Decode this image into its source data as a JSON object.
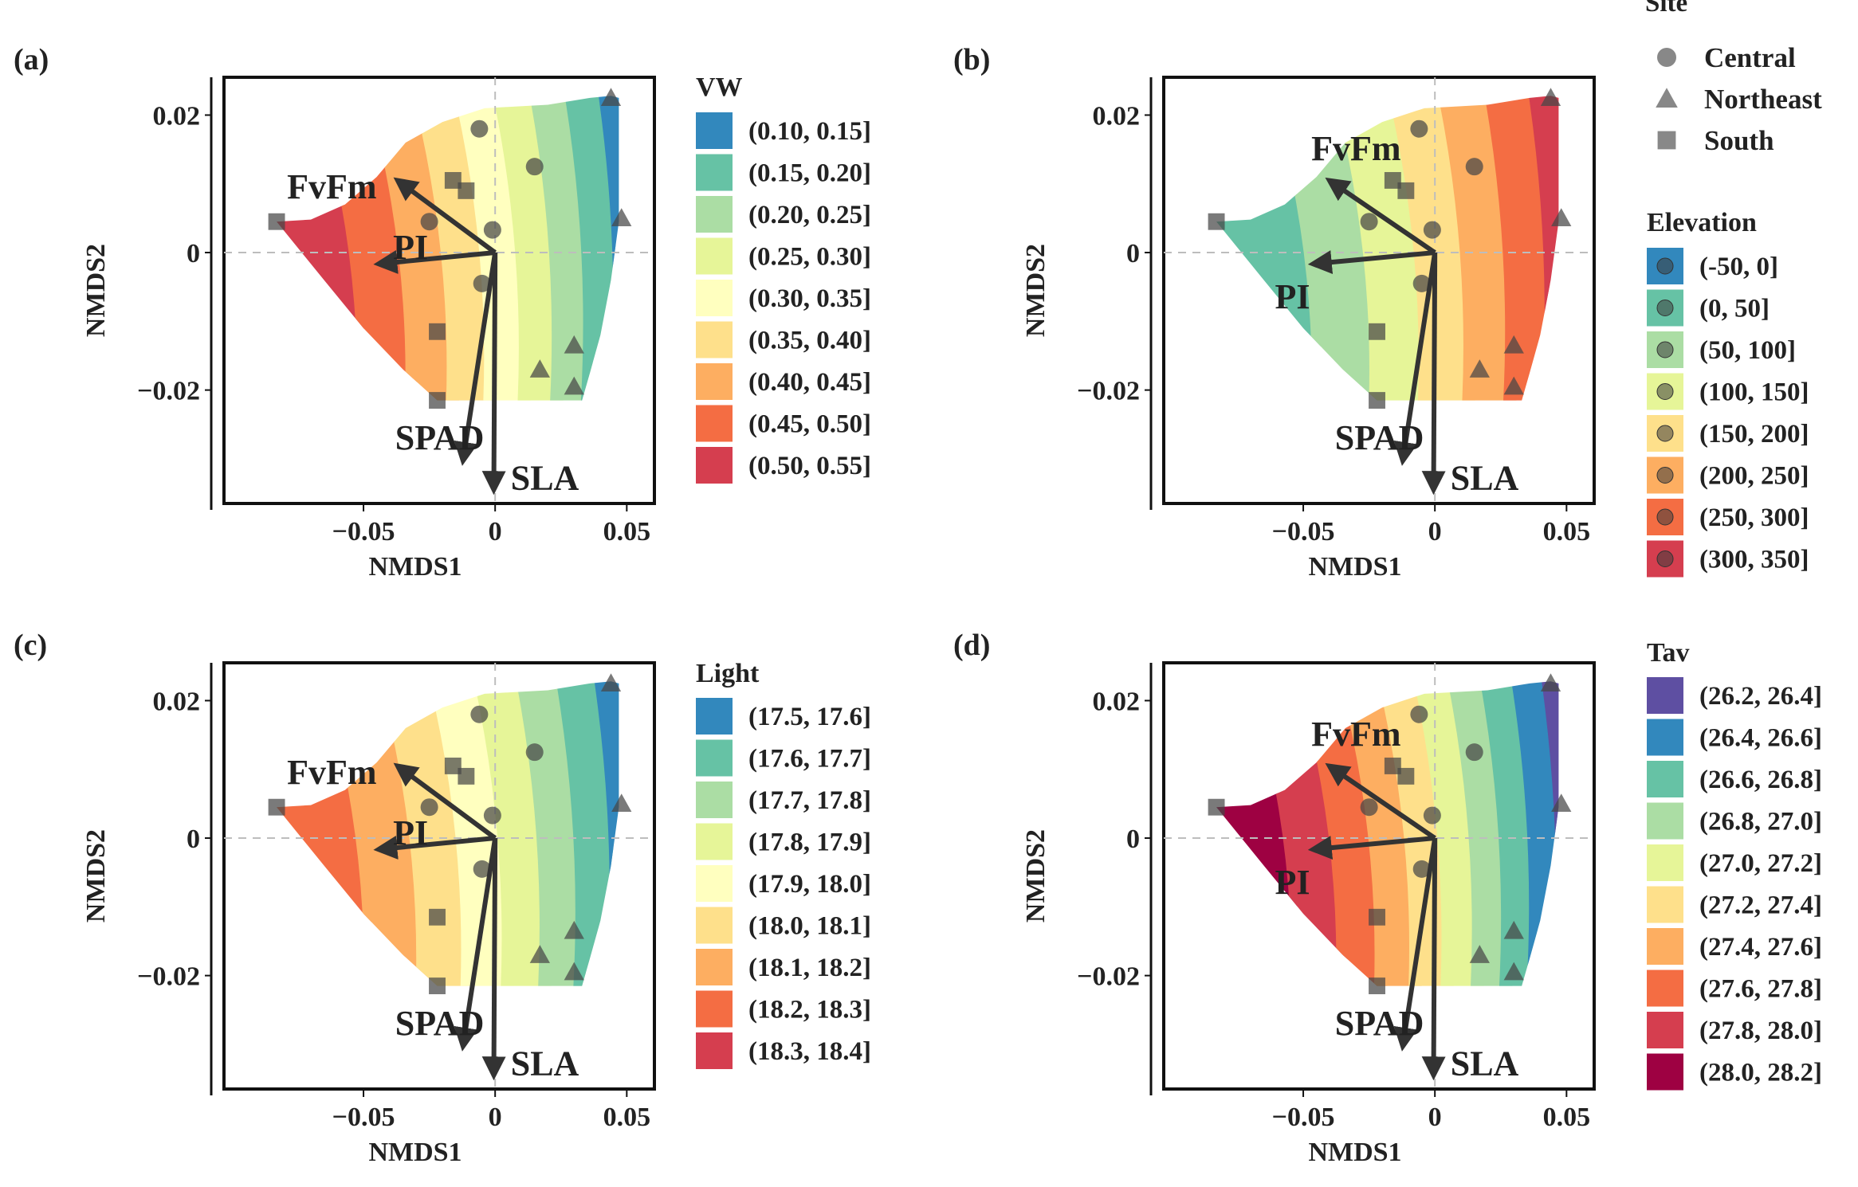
{
  "figure": {
    "site_legend": {
      "title": "Site",
      "entries": [
        {
          "label": "Central",
          "shape": "circle-icon"
        },
        {
          "label": "Northeast",
          "shape": "triangle-icon"
        },
        {
          "label": "South",
          "shape": "square-icon"
        }
      ]
    },
    "colors": {
      "frame": "#111111",
      "arrow": "#333333",
      "dashed": "#bdbdbd",
      "marker": "#555555"
    }
  },
  "chart_data": [
    {
      "type": "contour",
      "panel_label": "(a)",
      "xlabel": "NMDS1",
      "ylabel": "NMDS2",
      "xlim": [
        -0.103,
        0.0605
      ],
      "ylim": [
        -0.0365,
        0.0255
      ],
      "xticks": [
        -0.05,
        0,
        0.05
      ],
      "xtick_labels": [
        "−0.05",
        "0",
        "0.05"
      ],
      "yticks": [
        0.02,
        0,
        -0.02
      ],
      "ytick_labels": [
        "0.02",
        "0",
        "−0.02"
      ],
      "vectors": [
        {
          "label": "FvFm",
          "x": -0.036,
          "y": 0.0102
        },
        {
          "label": "PI",
          "x": -0.043,
          "y": -0.0016
        },
        {
          "label": "SPAD",
          "x": -0.012,
          "y": -0.0298
        },
        {
          "label": "SLA",
          "x": -0.0005,
          "y": -0.034
        }
      ],
      "surface": {
        "variable": "VW",
        "legend_title": "VW",
        "bins": [
          "(0.10, 0.15]",
          "(0.15, 0.20]",
          "(0.20, 0.25]",
          "(0.25, 0.30]",
          "(0.30, 0.35]",
          "(0.35, 0.40]",
          "(0.40, 0.45]",
          "(0.45, 0.50]",
          "(0.50, 0.55]"
        ],
        "colors": [
          "#3288bd",
          "#66c2a5",
          "#abdda4",
          "#e6f598",
          "#ffffbf",
          "#fee08b",
          "#fdae61",
          "#f46d43",
          "#d53e4f"
        ],
        "bands_left_to_right": [
          8,
          7,
          6,
          5,
          4,
          3,
          2,
          1,
          0
        ]
      },
      "sites": [
        {
          "site": "Central",
          "x": -0.006,
          "y": 0.018
        },
        {
          "site": "Central",
          "x": 0.015,
          "y": 0.0125
        },
        {
          "site": "Central",
          "x": -0.025,
          "y": 0.0045
        },
        {
          "site": "Central",
          "x": -0.001,
          "y": 0.0033
        },
        {
          "site": "Central",
          "x": -0.005,
          "y": -0.0045
        },
        {
          "site": "Northeast",
          "x": 0.044,
          "y": 0.0225
        },
        {
          "site": "Northeast",
          "x": 0.048,
          "y": 0.005
        },
        {
          "site": "Northeast",
          "x": 0.017,
          "y": -0.017
        },
        {
          "site": "Northeast",
          "x": 0.03,
          "y": -0.0135
        },
        {
          "site": "Northeast",
          "x": 0.03,
          "y": -0.0195
        },
        {
          "site": "South",
          "x": -0.083,
          "y": 0.0045
        },
        {
          "site": "South",
          "x": -0.016,
          "y": 0.0105
        },
        {
          "site": "South",
          "x": -0.011,
          "y": 0.009
        },
        {
          "site": "South",
          "x": -0.022,
          "y": -0.0115
        },
        {
          "site": "South",
          "x": -0.022,
          "y": -0.0215
        }
      ]
    },
    {
      "type": "contour",
      "panel_label": "(b)",
      "xlabel": "NMDS1",
      "ylabel": "NMDS2",
      "xlim": [
        -0.103,
        0.0605
      ],
      "ylim": [
        -0.0365,
        0.0255
      ],
      "xticks": [
        -0.05,
        0,
        0.05
      ],
      "xtick_labels": [
        "−0.05",
        "0",
        "0.05"
      ],
      "yticks": [
        0.02,
        0,
        -0.02
      ],
      "ytick_labels": [
        "0.02",
        "0",
        "−0.02"
      ],
      "vectors": [
        {
          "label": "FvFm",
          "x": -0.039,
          "y": 0.0102
        },
        {
          "label": "PI",
          "x": -0.045,
          "y": -0.0016
        },
        {
          "label": "SPAD",
          "x": -0.012,
          "y": -0.0298
        },
        {
          "label": "SLA",
          "x": -0.0005,
          "y": -0.034
        }
      ],
      "surface": {
        "variable": "Elevation",
        "legend_title": "Elevation",
        "bins": [
          "(-50, 0]",
          "(0, 50]",
          "(50, 100]",
          "(100, 150]",
          "(150, 200]",
          "(200, 250]",
          "(250, 300]",
          "(300, 350]"
        ],
        "colors": [
          "#3288bd",
          "#66c2a5",
          "#abdda4",
          "#e6f598",
          "#fee08b",
          "#fdae61",
          "#f46d43",
          "#d53e4f"
        ],
        "bands_left_to_right": [
          1,
          2,
          3,
          4,
          5,
          6,
          7
        ]
      },
      "sites": [
        {
          "site": "Central",
          "x": -0.006,
          "y": 0.018
        },
        {
          "site": "Central",
          "x": 0.015,
          "y": 0.0125
        },
        {
          "site": "Central",
          "x": -0.025,
          "y": 0.0045
        },
        {
          "site": "Central",
          "x": -0.001,
          "y": 0.0033
        },
        {
          "site": "Central",
          "x": -0.005,
          "y": -0.0045
        },
        {
          "site": "Northeast",
          "x": 0.044,
          "y": 0.0225
        },
        {
          "site": "Northeast",
          "x": 0.048,
          "y": 0.005
        },
        {
          "site": "Northeast",
          "x": 0.017,
          "y": -0.017
        },
        {
          "site": "Northeast",
          "x": 0.03,
          "y": -0.0135
        },
        {
          "site": "Northeast",
          "x": 0.03,
          "y": -0.0195
        },
        {
          "site": "South",
          "x": -0.083,
          "y": 0.0045
        },
        {
          "site": "South",
          "x": -0.016,
          "y": 0.0105
        },
        {
          "site": "South",
          "x": -0.011,
          "y": 0.009
        },
        {
          "site": "South",
          "x": -0.022,
          "y": -0.0115
        },
        {
          "site": "South",
          "x": -0.022,
          "y": -0.0215
        }
      ]
    },
    {
      "type": "contour",
      "panel_label": "(c)",
      "xlabel": "NMDS1",
      "ylabel": "NMDS2",
      "xlim": [
        -0.103,
        0.0605
      ],
      "ylim": [
        -0.0365,
        0.0255
      ],
      "xticks": [
        -0.05,
        0,
        0.05
      ],
      "xtick_labels": [
        "−0.05",
        "0",
        "0.05"
      ],
      "yticks": [
        0.02,
        0,
        -0.02
      ],
      "ytick_labels": [
        "0.02",
        "0",
        "−0.02"
      ],
      "vectors": [
        {
          "label": "FvFm",
          "x": -0.036,
          "y": 0.0102
        },
        {
          "label": "PI",
          "x": -0.043,
          "y": -0.0016
        },
        {
          "label": "SPAD",
          "x": -0.012,
          "y": -0.0298
        },
        {
          "label": "SLA",
          "x": -0.0005,
          "y": -0.034
        }
      ],
      "surface": {
        "variable": "Light",
        "legend_title": "Light",
        "bins": [
          "(17.5, 17.6]",
          "(17.6, 17.7]",
          "(17.7, 17.8]",
          "(17.8, 17.9]",
          "(17.9, 18.0]",
          "(18.0, 18.1]",
          "(18.1, 18.2]",
          "(18.2, 18.3]",
          "(18.3, 18.4]"
        ],
        "colors": [
          "#3288bd",
          "#66c2a5",
          "#abdda4",
          "#e6f598",
          "#ffffbf",
          "#fee08b",
          "#fdae61",
          "#f46d43",
          "#d53e4f"
        ],
        "bands_left_to_right": [
          7,
          6,
          5,
          4,
          3,
          2,
          1,
          0
        ]
      },
      "sites": [
        {
          "site": "Central",
          "x": -0.006,
          "y": 0.018
        },
        {
          "site": "Central",
          "x": 0.015,
          "y": 0.0125
        },
        {
          "site": "Central",
          "x": -0.025,
          "y": 0.0045
        },
        {
          "site": "Central",
          "x": -0.001,
          "y": 0.0033
        },
        {
          "site": "Central",
          "x": -0.005,
          "y": -0.0045
        },
        {
          "site": "Northeast",
          "x": 0.044,
          "y": 0.0225
        },
        {
          "site": "Northeast",
          "x": 0.048,
          "y": 0.005
        },
        {
          "site": "Northeast",
          "x": 0.017,
          "y": -0.017
        },
        {
          "site": "Northeast",
          "x": 0.03,
          "y": -0.0135
        },
        {
          "site": "Northeast",
          "x": 0.03,
          "y": -0.0195
        },
        {
          "site": "South",
          "x": -0.083,
          "y": 0.0045
        },
        {
          "site": "South",
          "x": -0.016,
          "y": 0.0105
        },
        {
          "site": "South",
          "x": -0.011,
          "y": 0.009
        },
        {
          "site": "South",
          "x": -0.022,
          "y": -0.0115
        },
        {
          "site": "South",
          "x": -0.022,
          "y": -0.0215
        }
      ]
    },
    {
      "type": "contour",
      "panel_label": "(d)",
      "xlabel": "NMDS1",
      "ylabel": "NMDS2",
      "xlim": [
        -0.103,
        0.0605
      ],
      "ylim": [
        -0.0365,
        0.0255
      ],
      "xticks": [
        -0.05,
        0,
        0.05
      ],
      "xtick_labels": [
        "−0.05",
        "0",
        "0.05"
      ],
      "yticks": [
        0.02,
        0,
        -0.02
      ],
      "ytick_labels": [
        "0.02",
        "0",
        "−0.02"
      ],
      "vectors": [
        {
          "label": "FvFm",
          "x": -0.039,
          "y": 0.0102
        },
        {
          "label": "PI",
          "x": -0.045,
          "y": -0.0016
        },
        {
          "label": "SPAD",
          "x": -0.012,
          "y": -0.0298
        },
        {
          "label": "SLA",
          "x": -0.0005,
          "y": -0.034
        }
      ],
      "surface": {
        "variable": "Tav",
        "legend_title": "Tav",
        "bins": [
          "(26.2, 26.4]",
          "(26.4, 26.6]",
          "(26.6, 26.8]",
          "(26.8, 27.0]",
          "(27.0, 27.2]",
          "(27.2, 27.4]",
          "(27.4, 27.6]",
          "(27.6, 27.8]",
          "(27.8, 28.0]",
          "(28.0, 28.2]"
        ],
        "colors": [
          "#5e4fa2",
          "#3288bd",
          "#66c2a5",
          "#abdda4",
          "#e6f598",
          "#fee08b",
          "#fdae61",
          "#f46d43",
          "#d53e4f",
          "#9e0142"
        ],
        "bands_left_to_right": [
          9,
          8,
          7,
          6,
          5,
          4,
          3,
          2,
          1,
          0
        ]
      },
      "sites": [
        {
          "site": "Central",
          "x": -0.006,
          "y": 0.018
        },
        {
          "site": "Central",
          "x": 0.015,
          "y": 0.0125
        },
        {
          "site": "Central",
          "x": -0.025,
          "y": 0.0045
        },
        {
          "site": "Central",
          "x": -0.001,
          "y": 0.0033
        },
        {
          "site": "Central",
          "x": -0.005,
          "y": -0.0045
        },
        {
          "site": "Northeast",
          "x": 0.044,
          "y": 0.0225
        },
        {
          "site": "Northeast",
          "x": 0.048,
          "y": 0.005
        },
        {
          "site": "Northeast",
          "x": 0.017,
          "y": -0.017
        },
        {
          "site": "Northeast",
          "x": 0.03,
          "y": -0.0135
        },
        {
          "site": "Northeast",
          "x": 0.03,
          "y": -0.0195
        },
        {
          "site": "South",
          "x": -0.083,
          "y": 0.0045
        },
        {
          "site": "South",
          "x": -0.016,
          "y": 0.0105
        },
        {
          "site": "South",
          "x": -0.011,
          "y": 0.009
        },
        {
          "site": "South",
          "x": -0.022,
          "y": -0.0115
        },
        {
          "site": "South",
          "x": -0.022,
          "y": -0.0215
        }
      ]
    }
  ]
}
